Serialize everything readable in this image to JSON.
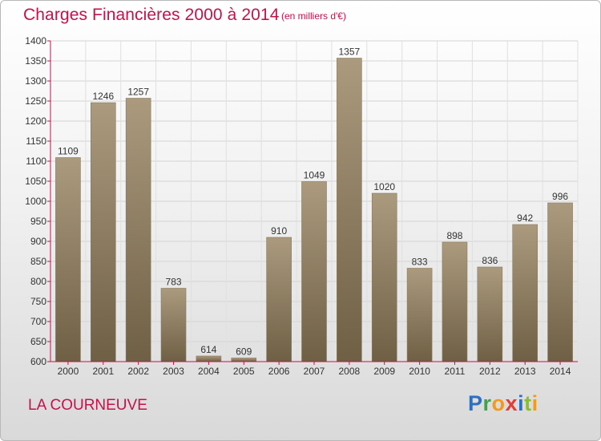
{
  "header": {
    "title": "Charges Financières 2000 à 2014",
    "unit": "(en milliers d'€)"
  },
  "footer": {
    "place": "LA COURNEUVE",
    "logo_letters": [
      "P",
      "r",
      "o",
      "x",
      "i",
      "t",
      "i"
    ]
  },
  "chart_data": {
    "type": "bar",
    "categories": [
      "2000",
      "2001",
      "2002",
      "2003",
      "2004",
      "2005",
      "2006",
      "2007",
      "2008",
      "2009",
      "2010",
      "2011",
      "2012",
      "2013",
      "2014"
    ],
    "values": [
      1109,
      1246,
      1257,
      783,
      614,
      609,
      910,
      1049,
      1357,
      1020,
      833,
      898,
      836,
      942,
      996
    ],
    "ylim": [
      600,
      1400
    ],
    "yticks": [
      600,
      650,
      700,
      750,
      800,
      850,
      900,
      950,
      1000,
      1050,
      1100,
      1150,
      1200,
      1250,
      1300,
      1350,
      1400
    ],
    "grid": true,
    "bar_color_top": "#ab9a7e",
    "bar_color_bottom": "#6f5f44",
    "axis_color": "#c8104a"
  }
}
